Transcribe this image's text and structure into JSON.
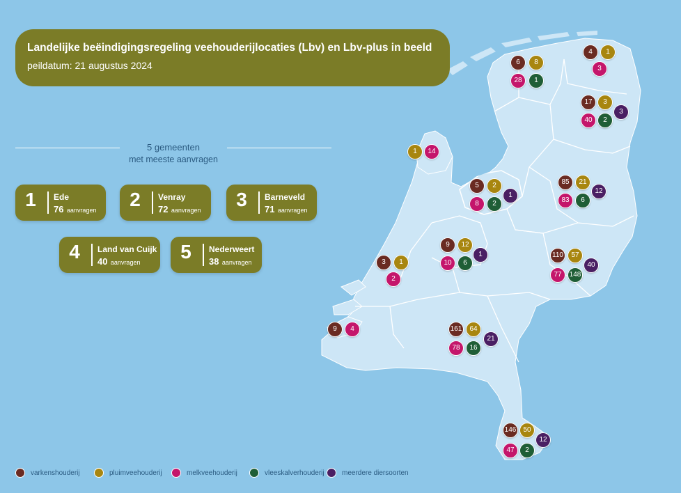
{
  "title": "Landelijke beëindigingsregeling veehouderijlocaties (Lbv) en Lbv-plus in beeld",
  "subtitle": "peildatum: 21 augustus 2024",
  "top5": {
    "title": "5 gemeenten",
    "subtitle": "met meeste aanvragen",
    "items": [
      {
        "rank": "1",
        "name": "Ede",
        "count": "76",
        "unit": "aanvragen"
      },
      {
        "rank": "2",
        "name": "Venray",
        "count": "72",
        "unit": "aanvragen"
      },
      {
        "rank": "3",
        "name": "Barneveld",
        "count": "71",
        "unit": "aanvragen"
      },
      {
        "rank": "4",
        "name": "Land van Cuijk",
        "count": "40",
        "unit": "aanvragen"
      },
      {
        "rank": "5",
        "name": "Nederweert",
        "count": "38",
        "unit": "aanvragen"
      }
    ]
  },
  "colors": {
    "varkenshouderij": "#6a2b22",
    "pluimveehouderij": "#a8860f",
    "melkveehouderij": "#c4166b",
    "vleeskalverhouderij": "#1f5e36",
    "meerdere": "#4a1f63",
    "land": "#cde6f6",
    "sea": "#8dc6e8",
    "accent": "#7b7c27"
  },
  "legend": [
    {
      "key": "varkenshouderij",
      "label": "varkenshouderij"
    },
    {
      "key": "pluimveehouderij",
      "label": "pluimveehouderij"
    },
    {
      "key": "melkveehouderij",
      "label": "melkveehouderij"
    },
    {
      "key": "vleeskalverhouderij",
      "label": "vleeskalverhouderij"
    },
    {
      "key": "meerdere",
      "label": "meerdere diersoorten"
    }
  ],
  "provinces": [
    {
      "name": "Friesland",
      "values": [
        {
          "t": "varkenshouderij",
          "v": "6"
        },
        {
          "t": "pluimveehouderij",
          "v": "8"
        },
        {
          "t": "melkveehouderij",
          "v": "28"
        },
        {
          "t": "vleeskalverhouderij",
          "v": "1"
        }
      ]
    },
    {
      "name": "Groningen",
      "values": [
        {
          "t": "varkenshouderij",
          "v": "4"
        },
        {
          "t": "pluimveehouderij",
          "v": "1"
        },
        {
          "t": "melkveehouderij",
          "v": "3"
        }
      ]
    },
    {
      "name": "Drenthe",
      "values": [
        {
          "t": "varkenshouderij",
          "v": "17"
        },
        {
          "t": "pluimveehouderij",
          "v": "3"
        },
        {
          "t": "melkveehouderij",
          "v": "40"
        },
        {
          "t": "vleeskalverhouderij",
          "v": "2"
        },
        {
          "t": "meerdere",
          "v": "3"
        }
      ]
    },
    {
      "name": "Noord-Holland",
      "values": [
        {
          "t": "pluimveehouderij",
          "v": "1"
        },
        {
          "t": "melkveehouderij",
          "v": "14"
        }
      ]
    },
    {
      "name": "Flevoland",
      "values": [
        {
          "t": "varkenshouderij",
          "v": "5"
        },
        {
          "t": "pluimveehouderij",
          "v": "2"
        },
        {
          "t": "melkveehouderij",
          "v": "8"
        },
        {
          "t": "vleeskalverhouderij",
          "v": "2"
        },
        {
          "t": "meerdere",
          "v": "1"
        }
      ]
    },
    {
      "name": "Overijssel",
      "values": [
        {
          "t": "varkenshouderij",
          "v": "85"
        },
        {
          "t": "pluimveehouderij",
          "v": "21"
        },
        {
          "t": "melkveehouderij",
          "v": "83"
        },
        {
          "t": "vleeskalverhouderij",
          "v": "6"
        },
        {
          "t": "meerdere",
          "v": "12"
        }
      ]
    },
    {
      "name": "Utrecht",
      "values": [
        {
          "t": "varkenshouderij",
          "v": "9"
        },
        {
          "t": "pluimveehouderij",
          "v": "12"
        },
        {
          "t": "melkveehouderij",
          "v": "10"
        },
        {
          "t": "vleeskalverhouderij",
          "v": "6"
        },
        {
          "t": "meerdere",
          "v": "1"
        }
      ]
    },
    {
      "name": "Zuid-Holland",
      "values": [
        {
          "t": "varkenshouderij",
          "v": "3"
        },
        {
          "t": "pluimveehouderij",
          "v": "1"
        },
        {
          "t": "melkveehouderij",
          "v": "2"
        }
      ]
    },
    {
      "name": "Gelderland",
      "values": [
        {
          "t": "varkenshouderij",
          "v": "110"
        },
        {
          "t": "pluimveehouderij",
          "v": "57"
        },
        {
          "t": "melkveehouderij",
          "v": "77"
        },
        {
          "t": "vleeskalverhouderij",
          "v": "148"
        },
        {
          "t": "meerdere",
          "v": "40"
        }
      ]
    },
    {
      "name": "Zeeland",
      "values": [
        {
          "t": "varkenshouderij",
          "v": "9"
        },
        {
          "t": "melkveehouderij",
          "v": "4"
        }
      ]
    },
    {
      "name": "Noord-Brabant",
      "values": [
        {
          "t": "varkenshouderij",
          "v": "161"
        },
        {
          "t": "pluimveehouderij",
          "v": "64"
        },
        {
          "t": "melkveehouderij",
          "v": "78"
        },
        {
          "t": "vleeskalverhouderij",
          "v": "16"
        },
        {
          "t": "meerdere",
          "v": "21"
        }
      ]
    },
    {
      "name": "Limburg",
      "values": [
        {
          "t": "varkenshouderij",
          "v": "146"
        },
        {
          "t": "pluimveehouderij",
          "v": "50"
        },
        {
          "t": "melkveehouderij",
          "v": "47"
        },
        {
          "t": "vleeskalverhouderij",
          "v": "2"
        },
        {
          "t": "meerdere",
          "v": "12"
        }
      ]
    }
  ]
}
